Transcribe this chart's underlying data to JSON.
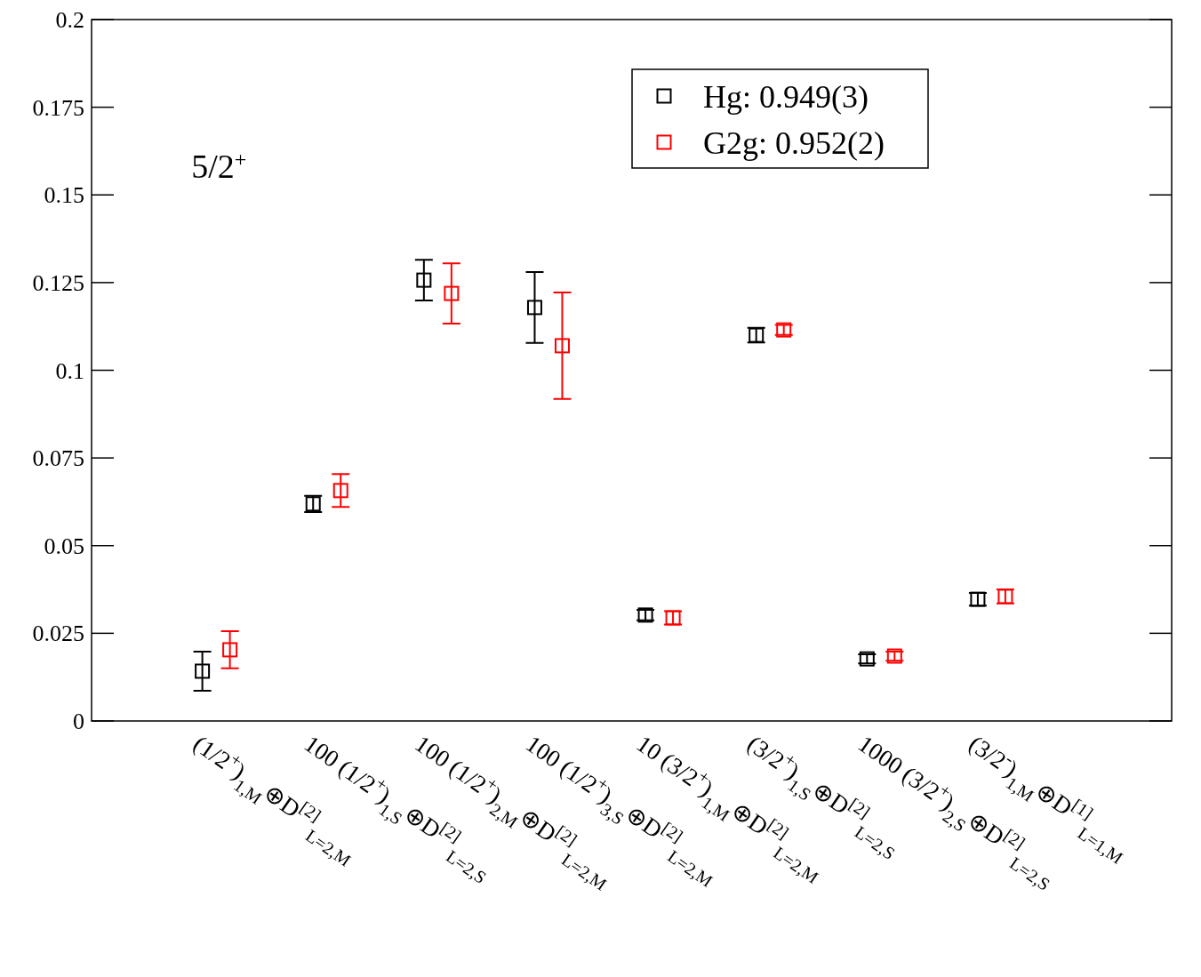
{
  "chart_data": {
    "type": "scatter",
    "annotations": [
      "5/2$^{+}$"
    ],
    "categories": [
      "(1/2$^{+}$)$_{1,M}$⊕D$^{[2]}$$_{L=2,M}$",
      "100 (1/2$^{+}$)$_{1,S}$⊕D$^{[2]}$$_{L=2,S}$",
      "100 (1/2$^{+}$)$_{2,M}$⊕D$^{[2]}$$_{L=2,M}$",
      "100 (1/2$^{+}$)$_{3,S}$⊕D$^{[2]}$$_{L=2,M}$",
      "10 (3/2$^{+}$)$_{1,M}$⊕D$^{[2]}$$_{L=2,M}$",
      "(3/2$^{+}$)$_{1,S}$⊕D$^{[2]}$$_{L=2,S}$",
      "1000 (3/2$^{+}$)$_{2,S}$⊕D$^{[2]}$$_{L=2,S}$",
      "(3/2$^{-}$)$_{1,M}$⊕D$^{[1]}$$_{L=1,M}$"
    ],
    "series": [
      {
        "name": "Hg: 0.949(3)",
        "color": "#000000",
        "values": [
          0.0142,
          0.0619,
          0.1257,
          0.1179,
          0.0302,
          0.11,
          0.0177,
          0.0347
        ],
        "errors": [
          0.0056,
          0.0023,
          0.0058,
          0.0101,
          0.0015,
          0.0021,
          0.0013,
          0.0018
        ]
      },
      {
        "name": "G2g: 0.952(2)",
        "color": "#ff0000",
        "values": [
          0.0203,
          0.0657,
          0.1219,
          0.107,
          0.0294,
          0.1115,
          0.0185,
          0.0355
        ],
        "errors": [
          0.0053,
          0.0047,
          0.0086,
          0.0152,
          0.0019,
          0.0014,
          0.0013,
          0.002
        ]
      }
    ],
    "ylim": [
      0,
      0.2
    ],
    "yticks": [
      0,
      0.025,
      0.05,
      0.075,
      0.1,
      0.125,
      0.15,
      0.175,
      0.2
    ],
    "marker": "square",
    "legend": "top right",
    "grid": false
  }
}
